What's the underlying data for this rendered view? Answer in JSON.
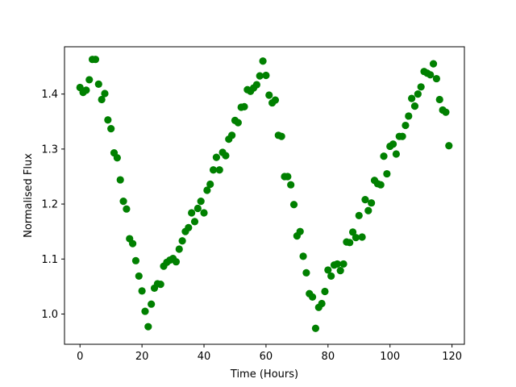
{
  "chart_data": {
    "type": "scatter",
    "title": "",
    "xlabel": "Time (Hours)",
    "ylabel": "Normalised Flux",
    "xlim": [
      -5,
      124
    ],
    "ylim": [
      0.945,
      1.486
    ],
    "xticks": [
      0,
      20,
      40,
      60,
      80,
      100,
      120
    ],
    "xtick_labels": [
      "0",
      "20",
      "40",
      "60",
      "80",
      "100",
      "120"
    ],
    "yticks": [
      1.0,
      1.1,
      1.2,
      1.3,
      1.4
    ],
    "ytick_labels": [
      "1.0",
      "1.1",
      "1.2",
      "1.3",
      "1.4"
    ],
    "grid": false,
    "color": "#008000",
    "series": [
      {
        "points": [
          [
            0,
            1.412
          ],
          [
            1,
            1.403
          ],
          [
            2,
            1.407
          ],
          [
            3,
            1.426
          ],
          [
            4,
            1.463
          ],
          [
            5,
            1.463
          ],
          [
            6,
            1.418
          ],
          [
            7,
            1.39
          ],
          [
            8,
            1.401
          ],
          [
            9,
            1.353
          ],
          [
            10,
            1.337
          ],
          [
            11,
            1.293
          ],
          [
            12,
            1.284
          ],
          [
            13,
            1.244
          ],
          [
            14,
            1.205
          ],
          [
            15,
            1.191
          ],
          [
            16,
            1.137
          ],
          [
            17,
            1.128
          ],
          [
            18,
            1.097
          ],
          [
            19,
            1.069
          ],
          [
            20,
            1.042
          ],
          [
            21,
            1.005
          ],
          [
            22,
            0.977
          ],
          [
            23,
            1.018
          ],
          [
            24,
            1.047
          ],
          [
            25,
            1.055
          ],
          [
            26,
            1.054
          ],
          [
            27,
            1.087
          ],
          [
            28,
            1.094
          ],
          [
            29,
            1.098
          ],
          [
            30,
            1.101
          ],
          [
            31,
            1.095
          ],
          [
            32,
            1.118
          ],
          [
            33,
            1.133
          ],
          [
            34,
            1.15
          ],
          [
            35,
            1.157
          ],
          [
            36,
            1.184
          ],
          [
            37,
            1.168
          ],
          [
            38,
            1.192
          ],
          [
            39,
            1.205
          ],
          [
            40,
            1.184
          ],
          [
            41,
            1.225
          ],
          [
            42,
            1.236
          ],
          [
            43,
            1.262
          ],
          [
            44,
            1.285
          ],
          [
            45,
            1.262
          ],
          [
            46,
            1.294
          ],
          [
            47,
            1.288
          ],
          [
            48,
            1.318
          ],
          [
            49,
            1.325
          ],
          [
            50,
            1.352
          ],
          [
            51,
            1.348
          ],
          [
            52,
            1.376
          ],
          [
            53,
            1.377
          ],
          [
            54,
            1.408
          ],
          [
            55,
            1.405
          ],
          [
            56,
            1.411
          ],
          [
            57,
            1.417
          ],
          [
            58,
            1.433
          ],
          [
            59,
            1.46
          ],
          [
            60,
            1.434
          ],
          [
            61,
            1.398
          ],
          [
            62,
            1.384
          ],
          [
            63,
            1.389
          ],
          [
            64,
            1.325
          ],
          [
            65,
            1.323
          ],
          [
            66,
            1.25
          ],
          [
            67,
            1.25
          ],
          [
            68,
            1.235
          ],
          [
            69,
            1.199
          ],
          [
            70,
            1.142
          ],
          [
            71,
            1.15
          ],
          [
            72,
            1.105
          ],
          [
            73,
            1.075
          ],
          [
            74,
            1.037
          ],
          [
            75,
            1.031
          ],
          [
            76,
            0.974
          ],
          [
            77,
            1.012
          ],
          [
            78,
            1.019
          ],
          [
            79,
            1.041
          ],
          [
            80,
            1.08
          ],
          [
            81,
            1.069
          ],
          [
            82,
            1.089
          ],
          [
            83,
            1.091
          ],
          [
            84,
            1.079
          ],
          [
            85,
            1.091
          ],
          [
            86,
            1.131
          ],
          [
            87,
            1.13
          ],
          [
            88,
            1.149
          ],
          [
            89,
            1.139
          ],
          [
            90,
            1.179
          ],
          [
            91,
            1.14
          ],
          [
            92,
            1.208
          ],
          [
            93,
            1.188
          ],
          [
            94,
            1.202
          ],
          [
            95,
            1.243
          ],
          [
            96,
            1.237
          ],
          [
            97,
            1.235
          ],
          [
            98,
            1.287
          ],
          [
            99,
            1.255
          ],
          [
            100,
            1.305
          ],
          [
            101,
            1.309
          ],
          [
            102,
            1.291
          ],
          [
            103,
            1.323
          ],
          [
            104,
            1.323
          ],
          [
            105,
            1.343
          ],
          [
            106,
            1.36
          ],
          [
            107,
            1.392
          ],
          [
            108,
            1.378
          ],
          [
            109,
            1.4
          ],
          [
            110,
            1.413
          ],
          [
            111,
            1.441
          ],
          [
            112,
            1.438
          ],
          [
            113,
            1.435
          ],
          [
            114,
            1.455
          ],
          [
            115,
            1.428
          ],
          [
            116,
            1.39
          ],
          [
            117,
            1.371
          ],
          [
            118,
            1.367
          ],
          [
            119,
            1.306
          ]
        ]
      }
    ]
  }
}
